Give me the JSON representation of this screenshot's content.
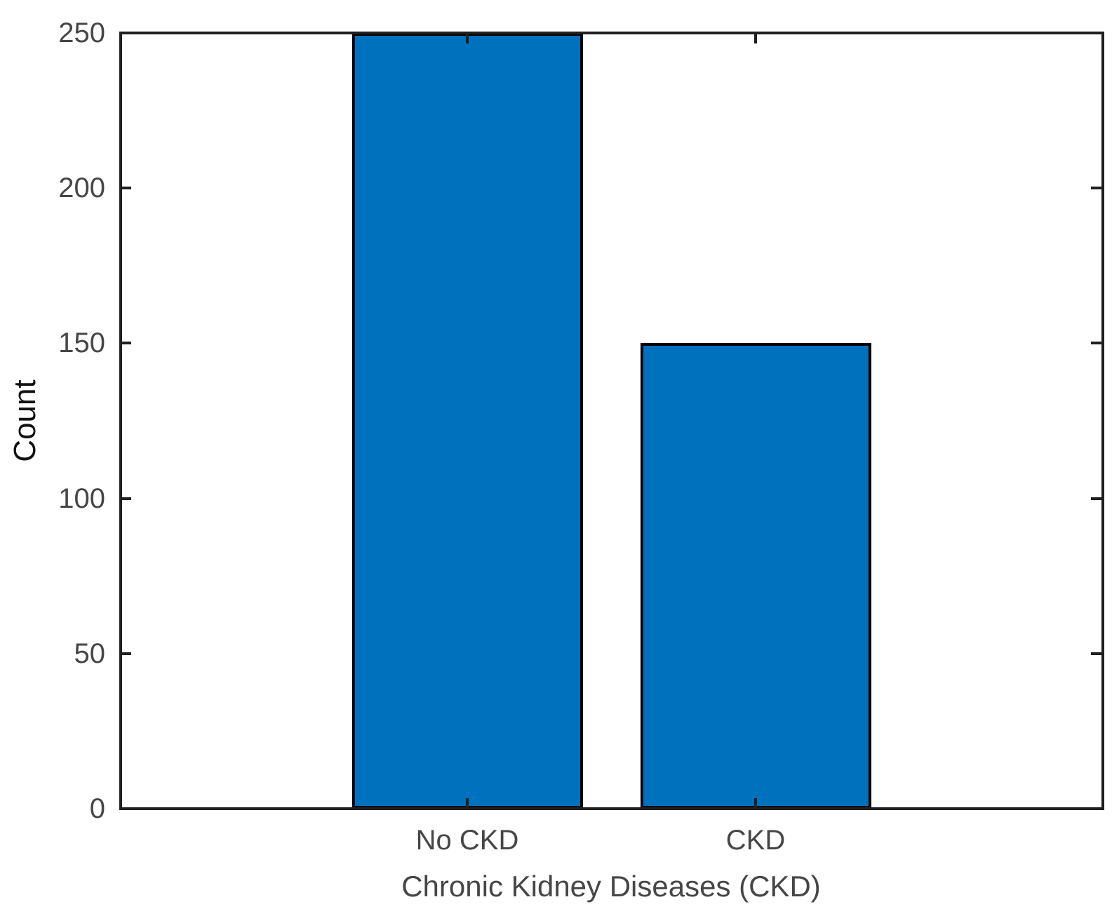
{
  "chart_data": {
    "type": "bar",
    "categories": [
      "No CKD",
      "CKD"
    ],
    "values": [
      250,
      150
    ],
    "title": "",
    "xlabel": "Chronic Kidney Diseases (CKD)",
    "ylabel": "Count",
    "ylim": [
      0,
      250
    ],
    "yticks": [
      0,
      50,
      100,
      150,
      200,
      250
    ],
    "grid": false,
    "legend_position": "none",
    "colors": {
      "bar_fill": "#0072BD",
      "bar_edge": "#000000",
      "axis_box": "#1f1f1f",
      "tick_label": "#464646",
      "xlabel_color": "#464646",
      "ylabel_color": "#111111",
      "background": "#FFFFFF"
    }
  }
}
